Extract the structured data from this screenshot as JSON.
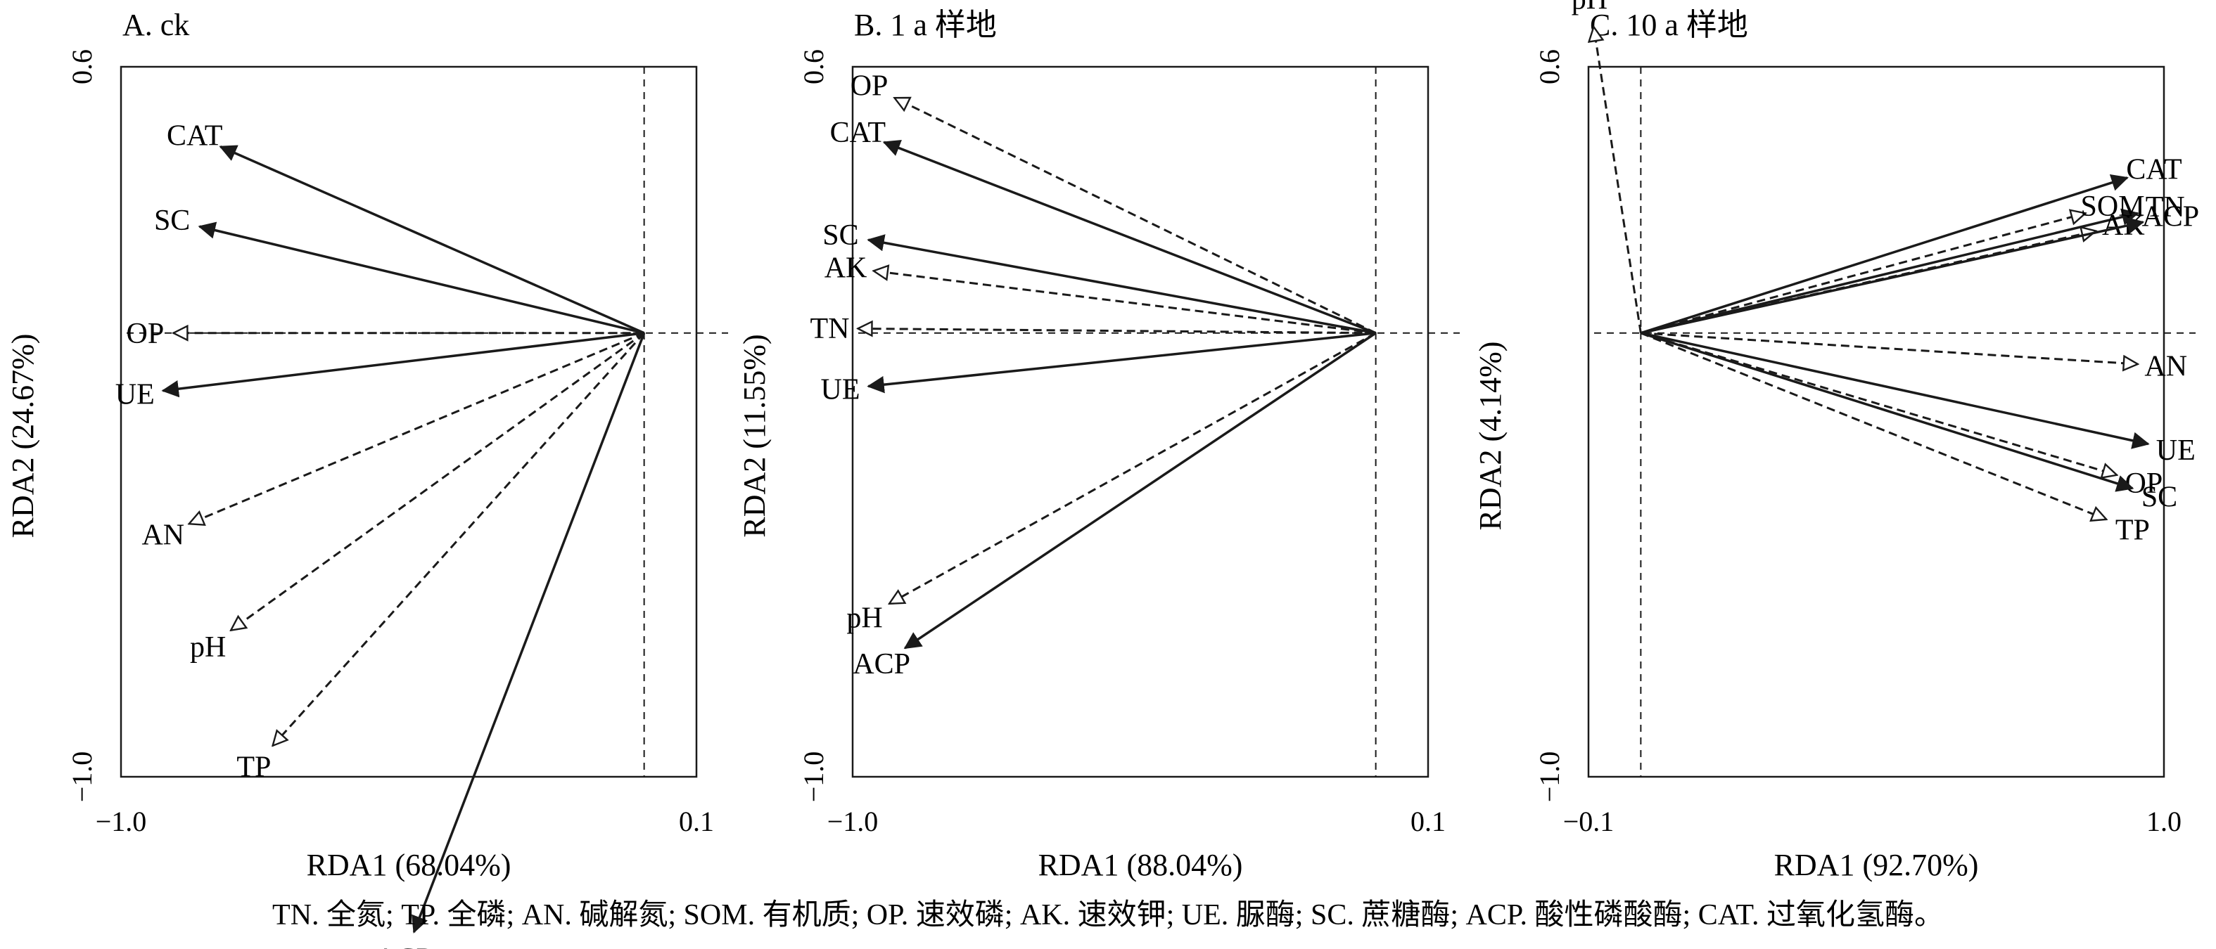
{
  "chart_data": [
    {
      "type": "biplot",
      "title": "A. ck",
      "xlabel": "RDA1 (68.04%)",
      "ylabel": "RDA2 (24.67%)",
      "xlim": [
        -1.0,
        0.1
      ],
      "ylim": [
        -1.0,
        0.6
      ],
      "x_tick_labels": [
        "−1.0",
        "0.1"
      ],
      "y_tick_labels": [
        "0.6",
        "−1.0"
      ],
      "vectors": [
        {
          "label": "CAT",
          "x": -0.81,
          "y": 0.42,
          "style": "solid"
        },
        {
          "label": "SC",
          "x": -0.85,
          "y": 0.24,
          "style": "solid"
        },
        {
          "label": "OP",
          "x": -0.9,
          "y": 0.0,
          "style": "dashed"
        },
        {
          "label": "UE",
          "x": -0.92,
          "y": -0.13,
          "style": "solid"
        },
        {
          "label": "AN",
          "x": -0.87,
          "y": -0.43,
          "style": "dashed"
        },
        {
          "label": "pH",
          "x": -0.79,
          "y": -0.67,
          "style": "dashed"
        },
        {
          "label": "TP",
          "x": -0.71,
          "y": -0.93,
          "style": "dashed"
        },
        {
          "label": "ACP",
          "x": -0.44,
          "y": -1.35,
          "style": "solid"
        }
      ]
    },
    {
      "type": "biplot",
      "title": "B. 1 a 样地",
      "xlabel": "RDA1 (88.04%)",
      "ylabel": "RDA2 (11.55%)",
      "xlim": [
        -1.0,
        0.1
      ],
      "ylim": [
        -1.0,
        0.6
      ],
      "x_tick_labels": [
        "−1.0",
        "0.1"
      ],
      "y_tick_labels": [
        "0.6",
        "−1.0"
      ],
      "vectors": [
        {
          "label": "OP",
          "x": -0.92,
          "y": 0.53,
          "style": "dashed"
        },
        {
          "label": "CAT",
          "x": -0.94,
          "y": 0.43,
          "style": "solid"
        },
        {
          "label": "SC",
          "x": -0.97,
          "y": 0.21,
          "style": "solid"
        },
        {
          "label": "AK",
          "x": -0.96,
          "y": 0.14,
          "style": "dashed"
        },
        {
          "label": "TN",
          "x": -0.99,
          "y": 0.01,
          "style": "dashed"
        },
        {
          "label": "UE",
          "x": -0.97,
          "y": -0.12,
          "style": "solid"
        },
        {
          "label": "pH",
          "x": -0.93,
          "y": -0.61,
          "style": "dashed"
        },
        {
          "label": "ACP",
          "x": -0.9,
          "y": -0.71,
          "style": "solid"
        }
      ]
    },
    {
      "type": "biplot",
      "title": "C. 10 a 样地",
      "xlabel": "RDA1 (92.70%)",
      "ylabel": "RDA2 (4.14%)",
      "xlim": [
        -0.1,
        1.0
      ],
      "ylim": [
        -1.0,
        0.6
      ],
      "x_tick_labels": [
        "−0.1",
        "1.0"
      ],
      "y_tick_labels": [
        "0.6",
        "−1.0"
      ],
      "vectors": [
        {
          "label": "pH",
          "x": -0.09,
          "y": 0.69,
          "style": "dashed"
        },
        {
          "label": "CAT",
          "x": 0.93,
          "y": 0.35,
          "style": "solid"
        },
        {
          "label": "TN",
          "x": 0.95,
          "y": 0.27,
          "style": "solid"
        },
        {
          "label": "SOM",
          "x": 0.85,
          "y": 0.27,
          "style": "dashed"
        },
        {
          "label": "AK",
          "x": 0.87,
          "y": 0.23,
          "style": "dashed"
        },
        {
          "label": "ACP",
          "x": 0.96,
          "y": 0.25,
          "style": "solid"
        },
        {
          "label": "AN",
          "x": 0.95,
          "y": -0.07,
          "style": "dashed"
        },
        {
          "label": "UE",
          "x": 0.97,
          "y": -0.25,
          "style": "solid"
        },
        {
          "label": "OP",
          "x": 0.91,
          "y": -0.32,
          "style": "dashed"
        },
        {
          "label": "SC",
          "x": 0.94,
          "y": -0.35,
          "style": "solid"
        },
        {
          "label": "TP",
          "x": 0.89,
          "y": -0.42,
          "style": "dashed"
        }
      ]
    }
  ],
  "caption": "TN. 全氮; TP. 全磷; AN. 碱解氮; SOM. 有机质; OP. 速效磷; AK. 速效钾; UE. 脲酶; SC. 蔗糖酶; ACP. 酸性磷酸酶; CAT. 过氧化氢酶。"
}
